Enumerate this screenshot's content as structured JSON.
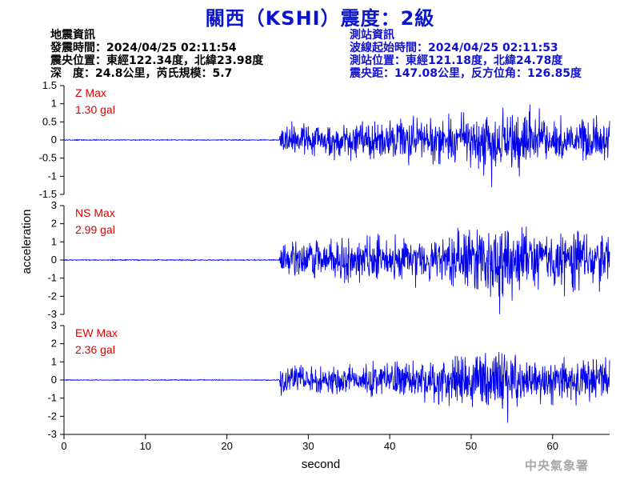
{
  "header": {
    "title": "關西（KSHI）震度：2級"
  },
  "quake_info": {
    "heading": "地震資訊",
    "origin_time": "發震時間：2024/04/25 02:11:54",
    "epicenter": "震央位置：東經122.34度，北緯23.98度",
    "depth_magnitude": "深　度：24.8公里，芮氏規模：5.7"
  },
  "station_info": {
    "heading": "測站資訊",
    "wave_start": "波線起始時間：2024/04/25 02:11:53",
    "location": "測站位置：東經121.18度，北緯24.78度",
    "distance_azimuth": "震央距：147.08公里，反方位角：126.85度"
  },
  "footer": {
    "agency": "中央氣象署"
  },
  "colors": {
    "trace": "#0000ee",
    "max_label": "#dd0000",
    "title": "#0a14cc"
  },
  "chart_data": {
    "type": "line",
    "xlabel": "second",
    "ylabel": "acceleration",
    "xlim": [
      0,
      67
    ],
    "xticks": [
      0,
      10,
      20,
      30,
      40,
      50,
      60
    ],
    "grid": false,
    "signal": {
      "p_arrival_s": 26.5,
      "strong_phase_s": [
        48,
        58
      ]
    },
    "panels": [
      {
        "name": "Z",
        "max_title": "Z Max",
        "max_value": "1.30 gal",
        "peak": 1.3,
        "ylim": [
          -1.5,
          1.5
        ],
        "yticks": [
          -1.5,
          -1,
          -0.5,
          0,
          0.5,
          1,
          1.5
        ],
        "ytick_labels": [
          "-1.5",
          "-1",
          "-0.5",
          "0",
          "0.5",
          "1",
          "1.5"
        ]
      },
      {
        "name": "NS",
        "max_title": "NS Max",
        "max_value": "2.99 gal",
        "peak": 2.99,
        "ylim": [
          -3,
          3
        ],
        "yticks": [
          -3,
          -2,
          -1,
          0,
          1,
          2,
          3
        ],
        "ytick_labels": [
          "-3",
          "-2",
          "-1",
          "0",
          "1",
          "2",
          "3"
        ]
      },
      {
        "name": "EW",
        "max_title": "EW Max",
        "max_value": "2.36 gal",
        "peak": 2.36,
        "ylim": [
          -3,
          3
        ],
        "yticks": [
          -3,
          -2,
          -1,
          0,
          1,
          2,
          3
        ],
        "ytick_labels": [
          "-3",
          "-2",
          "-1",
          "0",
          "1",
          "2",
          "3"
        ]
      }
    ]
  }
}
